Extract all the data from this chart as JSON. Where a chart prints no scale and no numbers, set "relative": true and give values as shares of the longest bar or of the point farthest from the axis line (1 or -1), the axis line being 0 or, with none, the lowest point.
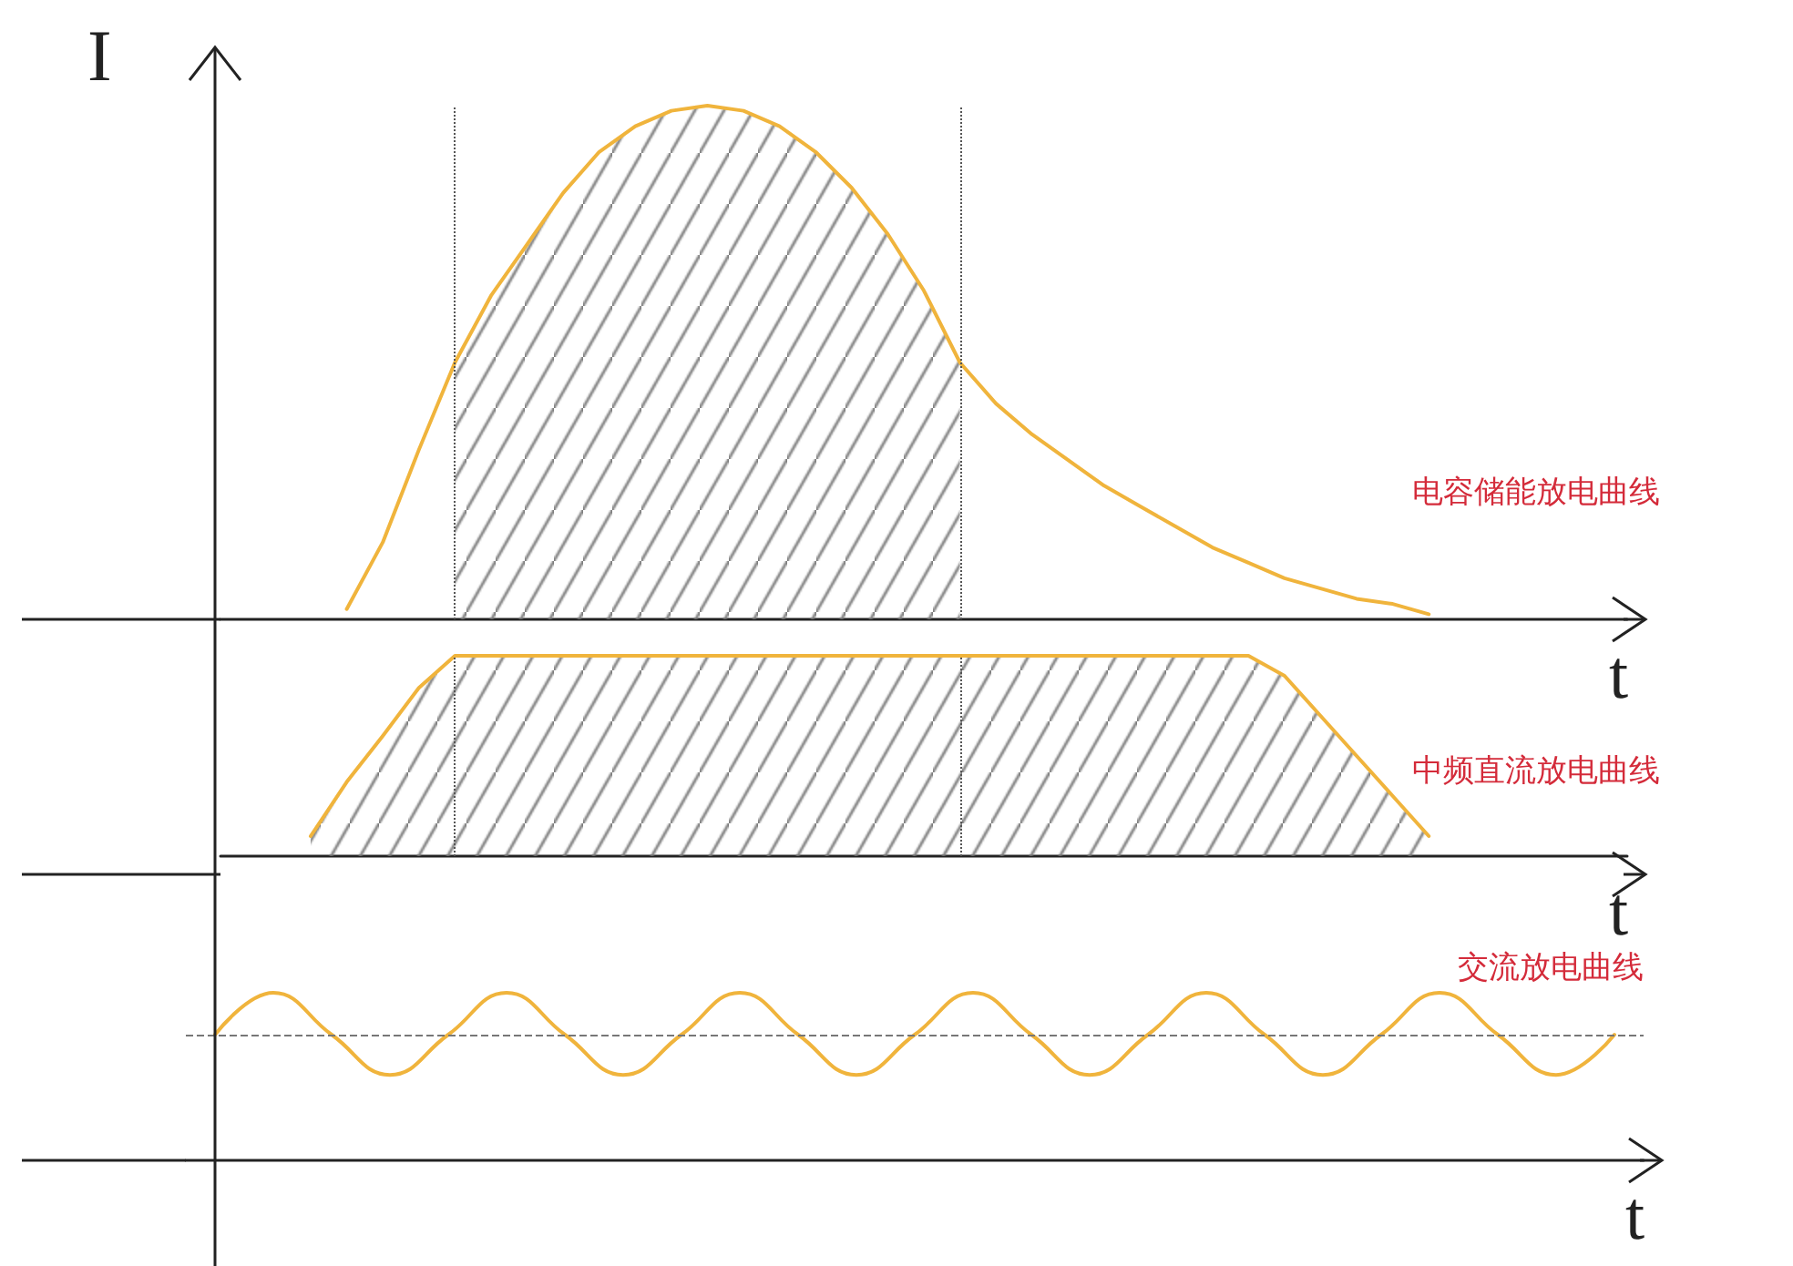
{
  "chart_data": [
    {
      "type": "line",
      "ylabel": "I",
      "xlabel": "t",
      "relative": true,
      "marker": "none",
      "categories": [
        null,
        null,
        null,
        null,
        null,
        null,
        null,
        null,
        null,
        null,
        null,
        null,
        null,
        null,
        null,
        null,
        null,
        null,
        null,
        null,
        null,
        null,
        null,
        null,
        null,
        null,
        null,
        null,
        null,
        null,
        null,
        null,
        null,
        null,
        null,
        null,
        null,
        null,
        null
      ],
      "series": [
        {
          "name": "电容储能放电曲线",
          "color": "#f0b43c",
          "values": [
            null,
            null,
            null,
            0.02,
            0.15,
            0.33,
            0.5,
            0.63,
            0.73,
            0.83,
            0.91,
            0.96,
            0.99,
            1,
            0.99,
            0.96,
            0.91,
            0.84,
            0.75,
            0.64,
            0.5,
            0.42,
            0.36,
            0.31,
            0.26,
            0.22,
            0.18,
            0.14,
            0.11,
            0.08,
            0.06,
            0.04,
            0.03,
            0.01,
            null,
            null,
            null,
            null,
            null
          ]
        },
        {
          "type": "area",
          "values": [
            null,
            null,
            null,
            null,
            null,
            null,
            0.5,
            0.63,
            0.73,
            0.83,
            0.91,
            0.96,
            0.99,
            1,
            0.99,
            0.96,
            0.91,
            0.84,
            0.75,
            0.64,
            0.5,
            null,
            null,
            null,
            null,
            null,
            null,
            null,
            null,
            null,
            null,
            null,
            null,
            null,
            null,
            null,
            null,
            null,
            null
          ]
        }
      ]
    },
    {
      "type": "area",
      "xlabel": "t",
      "relative": true,
      "marker": "none",
      "categories": [
        null,
        null,
        null,
        null,
        null,
        null,
        null,
        null,
        null,
        null,
        null,
        null,
        null,
        null,
        null,
        null,
        null,
        null,
        null,
        null,
        null,
        null,
        null,
        null,
        null,
        null,
        null,
        null,
        null,
        null,
        null,
        null,
        null,
        null,
        null,
        null,
        null,
        null,
        null
      ],
      "series": [
        {
          "name": "中频直流放电曲线",
          "color": "#f0b43c",
          "values": [
            null,
            null,
            0.1,
            0.37,
            0.6,
            0.84,
            1,
            1,
            1,
            1,
            1,
            1,
            1,
            1,
            1,
            1,
            1,
            1,
            1,
            1,
            1,
            1,
            1,
            1,
            1,
            1,
            1,
            1,
            1,
            0.9,
            0.7,
            0.5,
            0.3,
            0.1,
            null,
            null,
            null,
            null,
            null
          ]
        }
      ]
    },
    {
      "type": "line",
      "xlabel": "t",
      "relative": true,
      "marker": "none",
      "categories": [
        null,
        null,
        null,
        null,
        null,
        null,
        null,
        null,
        null,
        null,
        null,
        null,
        null,
        null,
        null,
        null,
        null,
        null,
        null,
        null,
        null,
        null,
        null,
        null,
        null
      ],
      "series": [
        {
          "name": "交流放电曲线",
          "color": "#f0b43c",
          "values": [
            0.75,
            1,
            0.75,
            0.51,
            0.75,
            1,
            0.75,
            0.51,
            0.75,
            1,
            0.75,
            0.51,
            0.75,
            1,
            0.75,
            0.51,
            0.75,
            1,
            0.75,
            0.51,
            0.75,
            1,
            0.75,
            0.51,
            0.75
          ]
        }
      ],
      "ref_lines": [
        {
          "axis": "y",
          "value": 0.75,
          "line_style": "dashed",
          "color": "#777777"
        }
      ]
    }
  ]
}
